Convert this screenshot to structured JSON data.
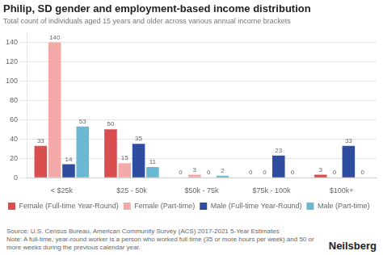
{
  "chart_data": {
    "type": "bar",
    "title": "Philip, SD gender and employment-based income distribution",
    "subtitle": "Total count of individuals aged 15 years and older across various annual income brackets",
    "categories": [
      "< $25k",
      "$25 - 50k",
      "$50k - 75k",
      "$75k - 100k",
      "$100k+"
    ],
    "series": [
      {
        "name": "Female (Full-time Year-Round)",
        "color": "#d94f4f",
        "values": [
          33,
          50,
          0,
          0,
          3
        ]
      },
      {
        "name": "Female (Part-time)",
        "color": "#f4a9a9",
        "values": [
          140,
          15,
          3,
          0,
          0
        ]
      },
      {
        "name": "Male (Full-time Year-Round)",
        "color": "#2e4d9e",
        "values": [
          14,
          35,
          0,
          23,
          33
        ]
      },
      {
        "name": "Male (Part-time)",
        "color": "#6bb8d4",
        "values": [
          53,
          11,
          2,
          0,
          0
        ]
      }
    ],
    "ylim": [
      0,
      150
    ],
    "yticks": [
      0,
      20,
      40,
      60,
      80,
      100,
      120,
      140
    ],
    "grid": true,
    "data_labels": true,
    "legend": "bottom",
    "annotations": [
      "Source: U.S. Census Bureau, American Community Survey (ACS) 2017-2021 5-Year Estimates",
      "Note: A full-time, year-round worker is a person who worked full time (35 or more hours per week) and 50 or more weeks during the previous calendar year.",
      "Neilsberg"
    ]
  }
}
